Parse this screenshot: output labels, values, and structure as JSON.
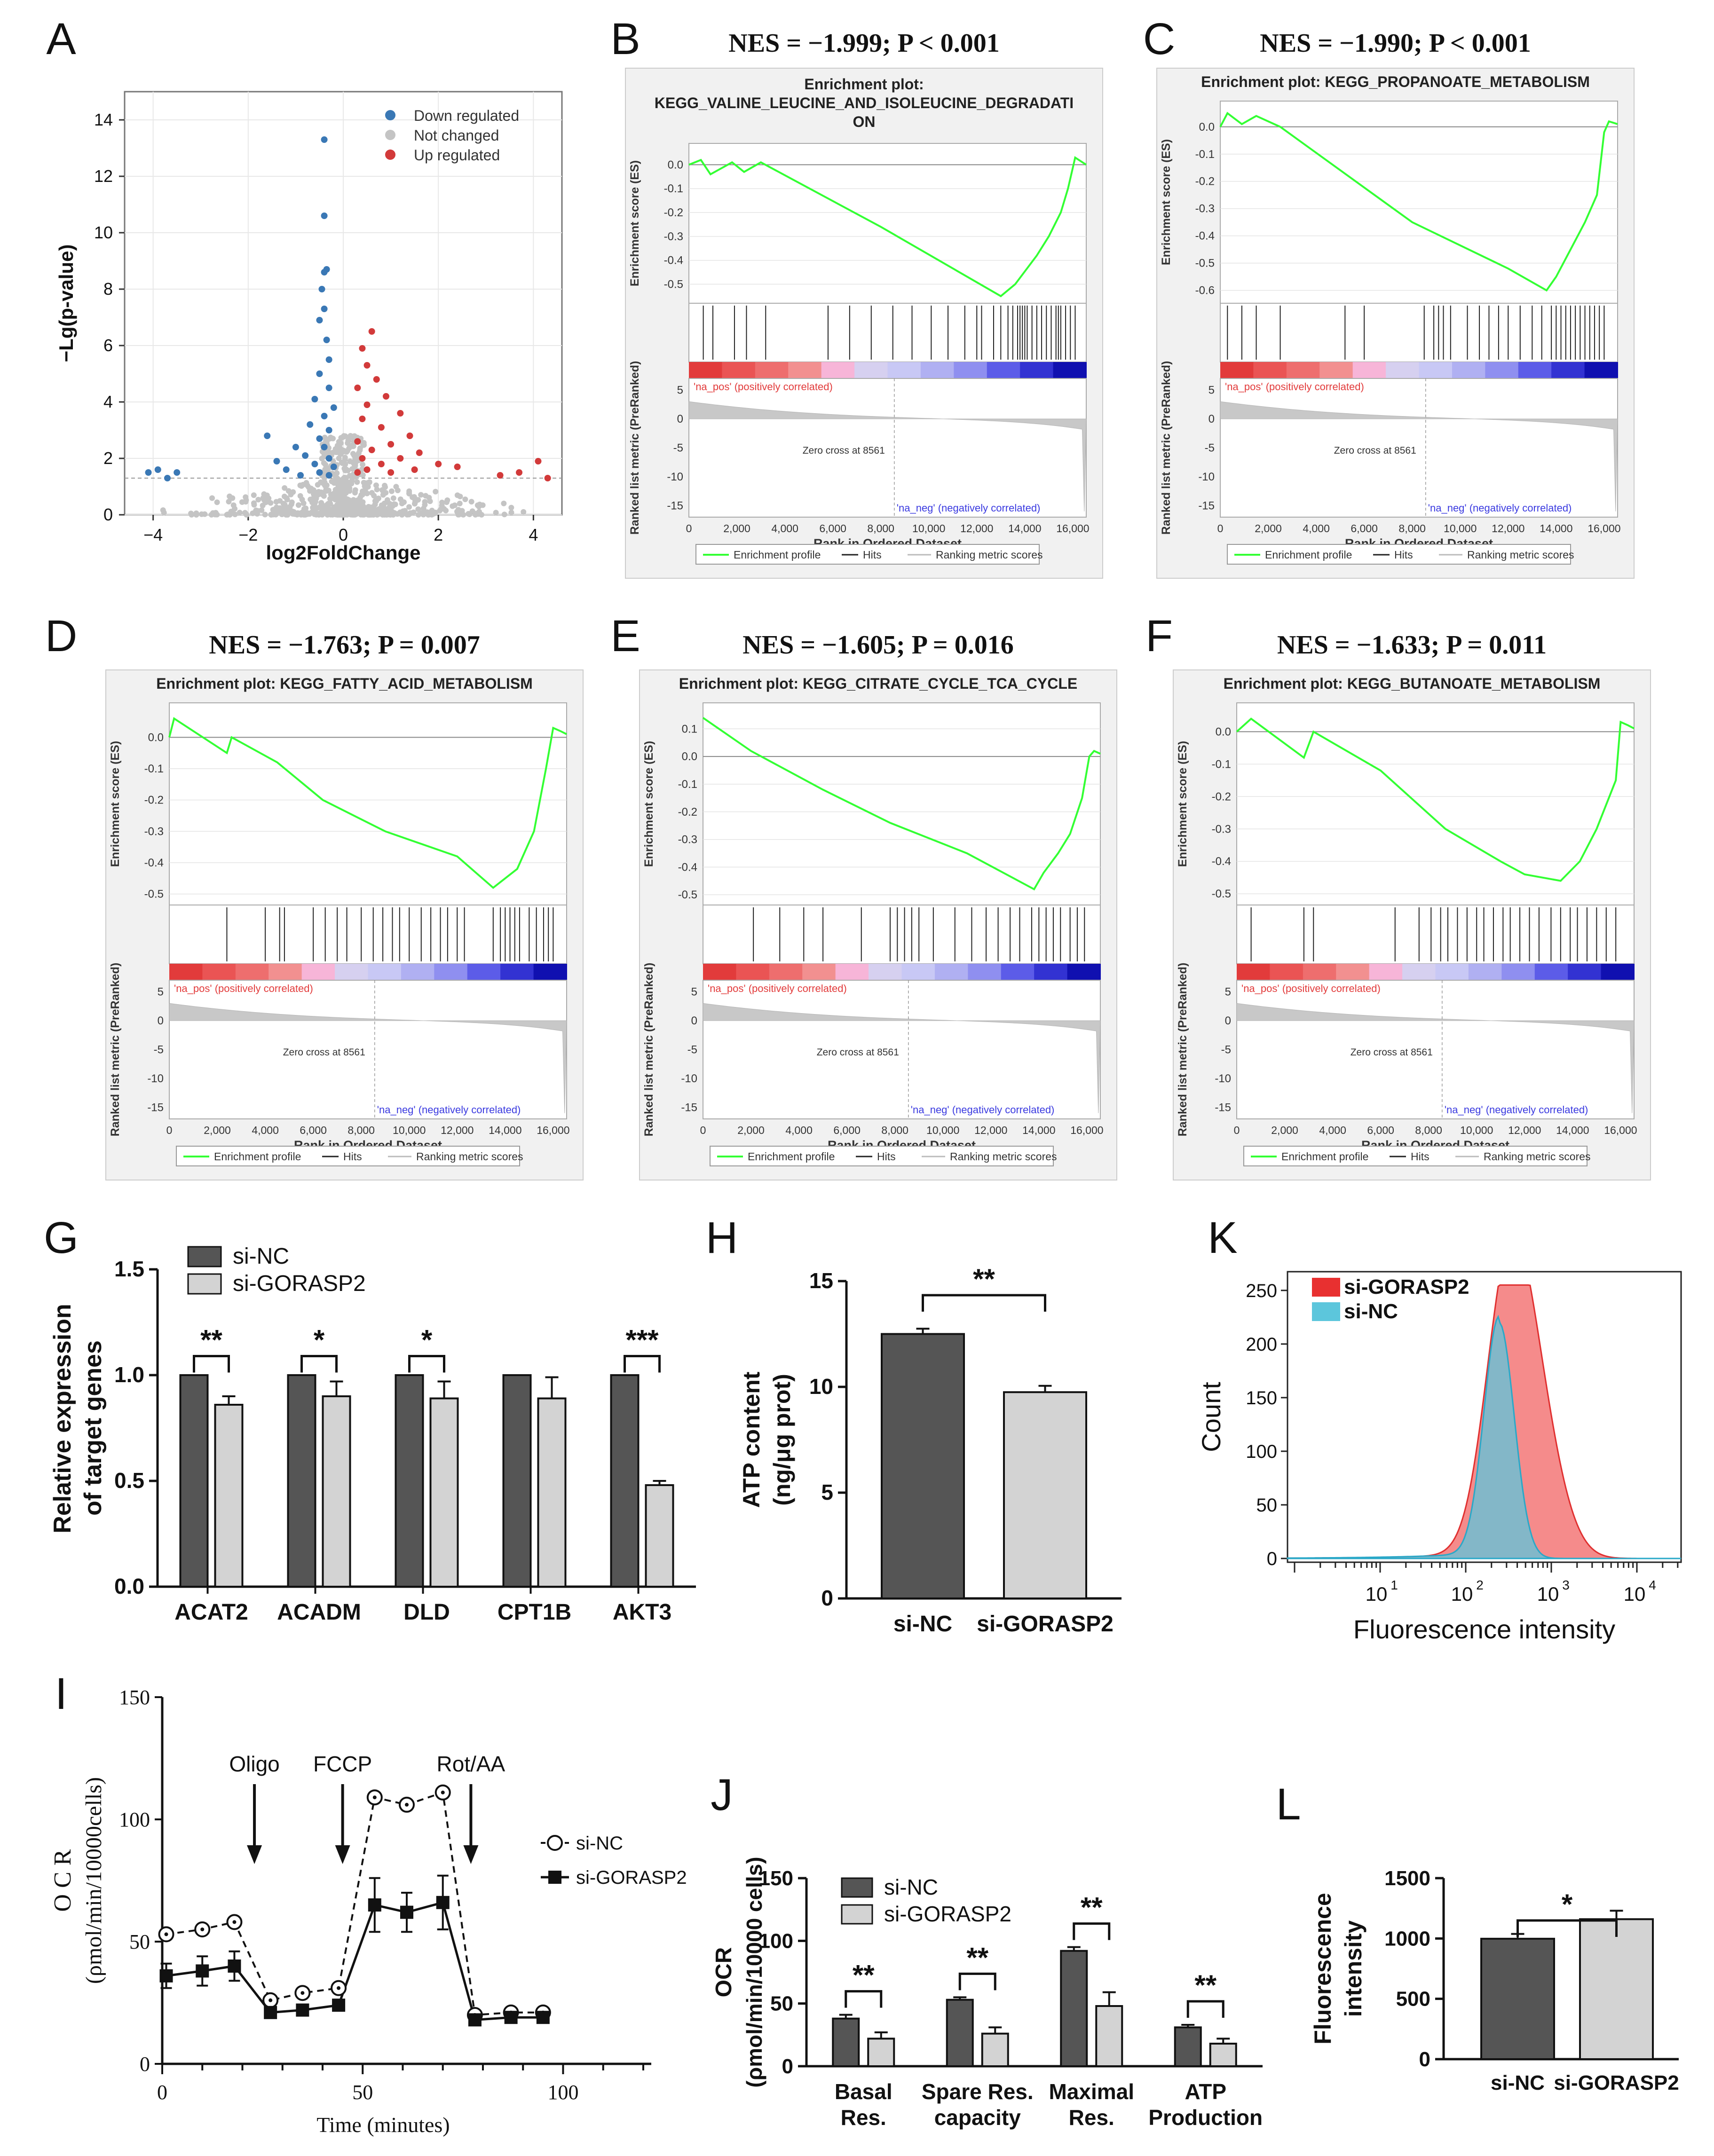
{
  "panel_letters": [
    "A",
    "B",
    "C",
    "D",
    "E",
    "F",
    "G",
    "H",
    "K",
    "I",
    "J",
    "L"
  ],
  "colors": {
    "down": "#3a78b5",
    "up": "#d23a3a",
    "notchanged": "#c4c4c4",
    "green": "#33ff33",
    "dark": "#555555",
    "light": "#d3d3d3",
    "cyan": "#5cc6dc",
    "red": "#f26464"
  },
  "chart_data": [
    {
      "panel": "A",
      "type": "scatter",
      "xlabel": "log2FoldChange",
      "ylabel": "−Lg(p-value)",
      "xlim": [
        -4.6,
        4.6
      ],
      "ylim": [
        0,
        15
      ],
      "xticks": [
        "−4",
        "−2",
        "0",
        "2",
        "4"
      ],
      "xtick_values": [
        -4,
        -2,
        0,
        2,
        4
      ],
      "yticks": [
        "0",
        "2",
        "4",
        "6",
        "8",
        "10",
        "12",
        "14"
      ],
      "ytick_values": [
        0,
        2,
        4,
        6,
        8,
        10,
        12,
        14
      ],
      "legend": [
        "Down regulated",
        "Not changed",
        "Up regulated"
      ],
      "down_points": [
        [
          -0.4,
          13.3
        ],
        [
          -0.4,
          10.6
        ],
        [
          -0.35,
          8.7
        ],
        [
          -0.4,
          8.6
        ],
        [
          -0.45,
          8.0
        ],
        [
          -0.4,
          7.3
        ],
        [
          -0.5,
          6.9
        ],
        [
          -0.35,
          6.2
        ],
        [
          -0.3,
          5.5
        ],
        [
          -0.5,
          5.0
        ],
        [
          -0.3,
          4.5
        ],
        [
          -0.6,
          4.1
        ],
        [
          -0.2,
          3.8
        ],
        [
          -0.4,
          3.5
        ],
        [
          -0.7,
          3.2
        ],
        [
          -0.3,
          3.0
        ],
        [
          -0.5,
          2.7
        ],
        [
          -1.6,
          2.8
        ],
        [
          -1.0,
          2.4
        ],
        [
          -0.4,
          2.4
        ],
        [
          -0.8,
          2.1
        ],
        [
          -0.3,
          2.0
        ],
        [
          -1.4,
          1.9
        ],
        [
          -0.6,
          1.8
        ],
        [
          -0.2,
          1.7
        ],
        [
          -1.2,
          1.6
        ],
        [
          -0.5,
          1.5
        ],
        [
          -3.9,
          1.6
        ],
        [
          -4.1,
          1.5
        ],
        [
          -3.5,
          1.5
        ],
        [
          -3.7,
          1.3
        ],
        [
          -0.9,
          1.4
        ],
        [
          -0.3,
          1.4
        ]
      ],
      "up_points": [
        [
          0.6,
          6.5
        ],
        [
          0.4,
          5.9
        ],
        [
          0.5,
          5.3
        ],
        [
          0.7,
          4.8
        ],
        [
          0.3,
          4.5
        ],
        [
          0.9,
          4.2
        ],
        [
          0.5,
          3.9
        ],
        [
          1.2,
          3.6
        ],
        [
          0.4,
          3.4
        ],
        [
          0.8,
          3.1
        ],
        [
          1.4,
          2.8
        ],
        [
          0.3,
          2.6
        ],
        [
          1.0,
          2.5
        ],
        [
          0.6,
          2.3
        ],
        [
          1.6,
          2.2
        ],
        [
          0.4,
          2.0
        ],
        [
          1.2,
          2.0
        ],
        [
          0.8,
          1.8
        ],
        [
          2.0,
          1.8
        ],
        [
          0.5,
          1.6
        ],
        [
          1.5,
          1.6
        ],
        [
          2.4,
          1.7
        ],
        [
          1.0,
          1.5
        ],
        [
          0.3,
          1.5
        ],
        [
          3.3,
          1.4
        ],
        [
          3.7,
          1.5
        ],
        [
          4.1,
          1.9
        ],
        [
          4.3,
          1.3
        ]
      ]
    },
    {
      "panel": "B",
      "type": "line",
      "header": "NES = −1.999; P < 0.001",
      "title": "Enrichment plot: KEGG_VALINE_LEUCINE_AND_ISOLEUCINE_DEGRADATION",
      "title_line1": "Enrichment plot:",
      "title_line2": "KEGG_VALINE_LEUCINE_AND_ISOLEUCINE_DEGRADATI",
      "title_line3": "ON",
      "es_yticks": [
        "0.0",
        "-0.1",
        "-0.2",
        "-0.3",
        "-0.4",
        "-0.5"
      ],
      "es_ytick_values": [
        0,
        -0.1,
        -0.2,
        -0.3,
        -0.4,
        -0.5
      ],
      "es_ylim": [
        -0.56,
        0.05
      ],
      "es_points": [
        [
          0,
          0
        ],
        [
          500,
          0.02
        ],
        [
          900,
          -0.04
        ],
        [
          1800,
          0.01
        ],
        [
          2300,
          -0.03
        ],
        [
          3000,
          0.01
        ],
        [
          8000,
          -0.26
        ],
        [
          13000,
          -0.55
        ],
        [
          13600,
          -0.5
        ],
        [
          14500,
          -0.38
        ],
        [
          15000,
          -0.3
        ],
        [
          15500,
          -0.2
        ],
        [
          15800,
          -0.1
        ],
        [
          16100,
          0.03
        ],
        [
          16561,
          0.0
        ]
      ],
      "hits": [
        600,
        1000,
        1900,
        2400,
        3200,
        5800,
        6700,
        7600,
        8500,
        9300,
        10100,
        10800,
        11500,
        12000,
        12200,
        12700,
        13000,
        13300,
        13500,
        13700,
        13800,
        13900,
        14000,
        14100,
        14300,
        14500,
        14700,
        14900,
        15100,
        15300,
        15400,
        15500,
        15700,
        15900,
        16100
      ]
    },
    {
      "panel": "C",
      "type": "line",
      "header": "NES = −1.990; P < 0.001",
      "title": "Enrichment plot: KEGG_PROPANOATE_METABOLISM",
      "es_yticks": [
        "0.0",
        "-0.1",
        "-0.2",
        "-0.3",
        "-0.4",
        "-0.5",
        "-0.6"
      ],
      "es_ytick_values": [
        0,
        -0.1,
        -0.2,
        -0.3,
        -0.4,
        -0.5,
        -0.6
      ],
      "es_ylim": [
        -0.63,
        0.06
      ],
      "es_points": [
        [
          0,
          0
        ],
        [
          300,
          0.05
        ],
        [
          900,
          0.01
        ],
        [
          1500,
          0.04
        ],
        [
          2500,
          0.0
        ],
        [
          8000,
          -0.35
        ],
        [
          12000,
          -0.52
        ],
        [
          13600,
          -0.6
        ],
        [
          14000,
          -0.55
        ],
        [
          14600,
          -0.45
        ],
        [
          15200,
          -0.35
        ],
        [
          15700,
          -0.25
        ],
        [
          16000,
          -0.02
        ],
        [
          16200,
          0.02
        ],
        [
          16561,
          0.01
        ]
      ],
      "hits": [
        300,
        900,
        1500,
        2500,
        5200,
        6000,
        8500,
        8900,
        9100,
        9300,
        9600,
        10300,
        10800,
        11200,
        11600,
        12000,
        12500,
        13000,
        13400,
        13800,
        14000,
        14200,
        14400,
        14600,
        14800,
        15000,
        15200,
        15400,
        15600,
        15800,
        16000
      ]
    },
    {
      "panel": "D",
      "type": "line",
      "header": "NES = −1.763; P = 0.007",
      "title": "Enrichment plot: KEGG_FATTY_ACID_METABOLISM",
      "es_yticks": [
        "0.0",
        "-0.1",
        "-0.2",
        "-0.3",
        "-0.4",
        "-0.5"
      ],
      "es_ytick_values": [
        0,
        -0.1,
        -0.2,
        -0.3,
        -0.4,
        -0.5
      ],
      "es_ylim": [
        -0.52,
        0.08
      ],
      "es_points": [
        [
          0,
          0
        ],
        [
          200,
          0.06
        ],
        [
          2400,
          -0.05
        ],
        [
          2600,
          0.0
        ],
        [
          4500,
          -0.08
        ],
        [
          6400,
          -0.2
        ],
        [
          9000,
          -0.3
        ],
        [
          12000,
          -0.38
        ],
        [
          13500,
          -0.48
        ],
        [
          14500,
          -0.42
        ],
        [
          15200,
          -0.3
        ],
        [
          15700,
          -0.1
        ],
        [
          16000,
          0.03
        ],
        [
          16300,
          0.02
        ],
        [
          16561,
          0.01
        ]
      ],
      "hits": [
        2400,
        4000,
        4600,
        4800,
        6000,
        6500,
        7000,
        7400,
        8000,
        8500,
        8900,
        9300,
        9600,
        10000,
        10500,
        10900,
        11300,
        11600,
        12000,
        12300,
        13500,
        13800,
        14000,
        14200,
        14400,
        14600,
        15000,
        15300,
        15600,
        15800,
        16000
      ]
    },
    {
      "panel": "E",
      "type": "line",
      "header": "NES = −1.605; P = 0.016",
      "title": "Enrichment plot: KEGG_CITRATE_CYCLE_TCA_CYCLE",
      "es_yticks": [
        "0.1",
        "0.0",
        "-0.1",
        "-0.2",
        "-0.3",
        "-0.4",
        "-0.5"
      ],
      "es_ytick_values": [
        0.1,
        0,
        -0.1,
        -0.2,
        -0.3,
        -0.4,
        -0.5
      ],
      "es_ylim": [
        -0.52,
        0.16
      ],
      "es_points": [
        [
          0,
          0.14
        ],
        [
          2000,
          0.02
        ],
        [
          5000,
          -0.12
        ],
        [
          7800,
          -0.24
        ],
        [
          11000,
          -0.35
        ],
        [
          13800,
          -0.48
        ],
        [
          14200,
          -0.42
        ],
        [
          14800,
          -0.35
        ],
        [
          15300,
          -0.28
        ],
        [
          15800,
          -0.15
        ],
        [
          16100,
          0.0
        ],
        [
          16300,
          0.02
        ],
        [
          16561,
          0.01
        ]
      ],
      "hits": [
        2100,
        3200,
        4200,
        5000,
        6600,
        7800,
        8100,
        8400,
        8700,
        9000,
        9600,
        10500,
        11200,
        11800,
        12300,
        12800,
        13200,
        13700,
        14000,
        14300,
        14600,
        14900,
        15300,
        15600,
        15900
      ]
    },
    {
      "panel": "F",
      "type": "line",
      "header": "NES = −1.633; P = 0.011",
      "title": "Enrichment plot: KEGG_BUTANOATE_METABOLISM",
      "es_yticks": [
        "0.0",
        "-0.1",
        "-0.2",
        "-0.3",
        "-0.4",
        "-0.5"
      ],
      "es_ytick_values": [
        0,
        -0.1,
        -0.2,
        -0.3,
        -0.4,
        -0.5
      ],
      "es_ylim": [
        -0.52,
        0.06
      ],
      "es_points": [
        [
          0,
          0
        ],
        [
          600,
          0.04
        ],
        [
          2800,
          -0.08
        ],
        [
          3200,
          0.0
        ],
        [
          6000,
          -0.12
        ],
        [
          8700,
          -0.3
        ],
        [
          11000,
          -0.4
        ],
        [
          12000,
          -0.44
        ],
        [
          13500,
          -0.46
        ],
        [
          14300,
          -0.4
        ],
        [
          15000,
          -0.3
        ],
        [
          15800,
          -0.15
        ],
        [
          16000,
          0.03
        ],
        [
          16300,
          0.02
        ],
        [
          16561,
          0.01
        ]
      ],
      "hits": [
        600,
        2800,
        3200,
        6600,
        7600,
        8100,
        8500,
        8800,
        9200,
        9600,
        10000,
        10300,
        10700,
        11100,
        11400,
        11800,
        12200,
        12600,
        13100,
        13500,
        13900,
        14200,
        14600,
        15000,
        15400,
        15800
      ]
    },
    {
      "panel": "G",
      "type": "bar",
      "ylabel": "Relative expression of target genes",
      "categories": [
        "ACAT2",
        "ACADM",
        "DLD",
        "CPT1B",
        "AKT3"
      ],
      "series": [
        {
          "name": "si-NC",
          "values": [
            1.0,
            1.0,
            1.0,
            1.0,
            1.0
          ],
          "err": [
            0,
            0,
            0,
            0,
            0
          ]
        },
        {
          "name": "si-GORASP2",
          "values": [
            0.86,
            0.9,
            0.89,
            0.89,
            0.48
          ],
          "err": [
            0.04,
            0.07,
            0.08,
            0.1,
            0.02
          ]
        }
      ],
      "ylim": [
        0,
        1.5
      ],
      "yticks": [
        "0.0",
        "0.5",
        "1.0",
        "1.5"
      ],
      "ytick_values": [
        0,
        0.5,
        1.0,
        1.5
      ],
      "sig": [
        "**",
        "*",
        "*",
        "",
        "***"
      ]
    },
    {
      "panel": "H",
      "type": "bar",
      "ylabel_line1": "ATP content",
      "ylabel_line2": "(ng/μg prot)",
      "categories": [
        "si-NC",
        "si-GORASP2"
      ],
      "values": [
        12.5,
        9.75
      ],
      "err": [
        0.25,
        0.3
      ],
      "ylim": [
        0,
        15
      ],
      "yticks": [
        "0",
        "5",
        "10",
        "15"
      ],
      "ytick_values": [
        0,
        5,
        10,
        15
      ],
      "sig": "**"
    },
    {
      "panel": "K",
      "type": "area",
      "xlabel": "Fluorescence intensity",
      "ylabel": "Count",
      "ylim": [
        0,
        260
      ],
      "yticks": [
        "0",
        "50",
        "100",
        "150",
        "200",
        "250"
      ],
      "ytick_values": [
        0,
        50,
        100,
        150,
        200,
        250
      ],
      "xticks_base": [
        "10",
        "10",
        "10",
        "10"
      ],
      "xticks_exp": [
        "1",
        "2",
        "3",
        "4"
      ],
      "legend": [
        "si-GORASP2",
        "si-NC"
      ]
    },
    {
      "panel": "I",
      "type": "line",
      "ylabel_line1": "O C R",
      "ylabel_line2": "(ρmol/min/10000cells)",
      "xlabel": "Time (minutes)",
      "xlim": [
        0,
        122
      ],
      "ylim": [
        0,
        150
      ],
      "xticks": [
        "0",
        "50",
        "100"
      ],
      "xtick_values": [
        0,
        50,
        100
      ],
      "yticks": [
        "0",
        "50",
        "100",
        "150"
      ],
      "ytick_values": [
        0,
        50,
        100,
        150
      ],
      "annotations": [
        "Oligo",
        "FCCP",
        "Rot/AA"
      ],
      "annotation_x": [
        23,
        45,
        77
      ],
      "x": [
        1,
        10,
        18,
        27,
        35,
        44,
        53,
        61,
        70,
        78,
        87,
        95
      ],
      "series": [
        {
          "name": "si-NC",
          "values": [
            53,
            55,
            58,
            26,
            29,
            31,
            109,
            106,
            111,
            20,
            21,
            21
          ]
        },
        {
          "name": "si-GORASP2",
          "values": [
            36,
            38,
            40,
            21,
            22,
            24,
            65,
            62,
            66,
            18,
            19,
            19
          ],
          "err": [
            5,
            6,
            6,
            2,
            2,
            2,
            11,
            8,
            11,
            2,
            2,
            2
          ]
        }
      ]
    },
    {
      "panel": "J",
      "type": "bar",
      "ylabel_line1": "OCR",
      "ylabel_line2": "(ρmol/min/10000 cells)",
      "categories": [
        "Basal Res.",
        "Spare Res. capacity",
        "Maximal Res.",
        "ATP Production"
      ],
      "categories_line1": [
        "Basal",
        "Spare Res.",
        "Maximal",
        "ATP"
      ],
      "categories_line2": [
        "Res.",
        "capacity",
        "Res.",
        "Production"
      ],
      "series": [
        {
          "name": "si-NC",
          "values": [
            38,
            53,
            92,
            31
          ],
          "err": [
            3,
            2,
            3,
            2
          ]
        },
        {
          "name": "si-GORASP2",
          "values": [
            22,
            26,
            48,
            18
          ],
          "err": [
            5,
            5,
            11,
            4
          ]
        }
      ],
      "ylim": [
        0,
        150
      ],
      "yticks": [
        "0",
        "50",
        "100",
        "150"
      ],
      "ytick_values": [
        0,
        50,
        100,
        150
      ],
      "sig": [
        "**",
        "**",
        "**",
        "**"
      ]
    },
    {
      "panel": "L",
      "type": "bar",
      "ylabel_line1": "Fluorescence",
      "ylabel_line2": "intensity",
      "categories": [
        "si-NC",
        "si-GORASP2"
      ],
      "values": [
        998,
        1160
      ],
      "err": [
        40,
        70
      ],
      "ylim": [
        0,
        1500
      ],
      "yticks": [
        "0",
        "500",
        "1000",
        "1500"
      ],
      "ytick_values": [
        0,
        500,
        1000,
        1500
      ],
      "sig": "*"
    }
  ],
  "gsea_common": {
    "es_ylabel": "Enrichment score (ES)",
    "rank_ylabel": "Ranked list metric (PreRanked)",
    "xlabel": "Rank in Ordered Dataset",
    "xticks": [
      "0",
      "2,000",
      "4,000",
      "6,000",
      "8,000",
      "10,000",
      "12,000",
      "14,000",
      "16,000"
    ],
    "xtick_values": [
      0,
      2000,
      4000,
      6000,
      8000,
      10000,
      12000,
      14000,
      16000
    ],
    "rank_yticks": [
      "5",
      "0",
      "-5",
      "-10",
      "-15"
    ],
    "rank_ytick_values": [
      5,
      0,
      -5,
      -10,
      -15
    ],
    "pos_label": "'na_pos' (positively correlated)",
    "neg_label": "'na_neg' (negatively correlated)",
    "zero_label": "Zero cross at 8561",
    "zero_cross": 8561,
    "n": 16561,
    "legend": [
      "Enrichment profile",
      "Hits",
      "Ranking metric scores"
    ]
  }
}
